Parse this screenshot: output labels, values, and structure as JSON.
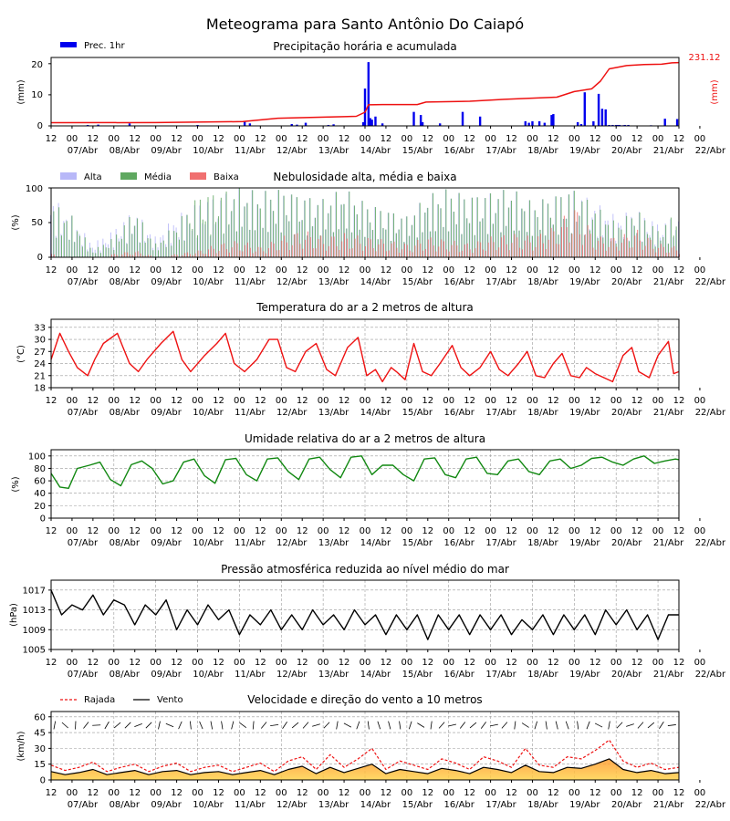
{
  "title": "Meteograma para Santo Antônio Do Caiapó",
  "time_axis": {
    "hours_total": 360,
    "hour_tick_labels": [
      "12",
      "00",
      "12",
      "00",
      "12",
      "00",
      "12",
      "00",
      "12",
      "00",
      "12",
      "00",
      "12",
      "00",
      "12",
      "00",
      "12",
      "00",
      "12",
      "00",
      "12",
      "00",
      "12",
      "00",
      "12",
      "00",
      "12",
      "00",
      "12",
      "00",
      "12",
      "00"
    ],
    "day_labels": [
      "07/Abr",
      "08/Abr",
      "09/Abr",
      "10/Abr",
      "11/Abr",
      "12/Abr",
      "13/Abr",
      "14/Abr",
      "15/Abr",
      "16/Abr",
      "17/Abr",
      "18/Abr",
      "19/Abr",
      "20/Abr",
      "21/Abr",
      "22/Abr"
    ]
  },
  "panels": {
    "precip": {
      "title": "Precipitação horária e acumulada",
      "ylabel": "(mm)",
      "ylabel_right": "(mm)",
      "right_value": "231.12",
      "legend": "Prec. 1hr",
      "yticks": [
        "0",
        "10",
        "20"
      ]
    },
    "clouds": {
      "title": "Nebulosidade alta, média e baixa",
      "ylabel": "(%)",
      "legend": [
        "Alta",
        "Média",
        "Baixa"
      ],
      "yticks": [
        "0",
        "50",
        "100"
      ]
    },
    "temp": {
      "title": "Temperatura do ar a 2 metros de altura",
      "ylabel": "(°C)",
      "yticks": [
        "18",
        "21",
        "24",
        "27",
        "30",
        "33"
      ]
    },
    "rh": {
      "title": "Umidade relativa do ar a 2 metros de altura",
      "ylabel": "(%)",
      "yticks": [
        "0",
        "20",
        "40",
        "60",
        "80",
        "100"
      ]
    },
    "press": {
      "title": "Pressão atmosférica reduzida ao nível médio do mar",
      "ylabel": "(hPa)",
      "yticks": [
        "1005",
        "1009",
        "1013",
        "1017"
      ]
    },
    "wind": {
      "title": "Velocidade e direção do vento a 10 metros",
      "ylabel": "(km/h)",
      "legend": [
        "Rajada",
        "Vento"
      ],
      "yticks": [
        "0",
        "15",
        "30",
        "45",
        "60"
      ]
    }
  },
  "colors": {
    "precip_bar": "#0000ee",
    "precip_accum": "#ee1111",
    "cloud_high": "#b8b8f8",
    "cloud_mid": "#5fa860",
    "cloud_low": "#f07070",
    "temp": "#ee1111",
    "rh": "#118811",
    "press": "#000000",
    "gust": "#ee1111",
    "wind": "#000000"
  },
  "chart_data": [
    {
      "type": "bar",
      "name": "precip_hourly",
      "title": "Precipitação horária e acumulada",
      "ylabel": "(mm)",
      "ylim": [
        0,
        22
      ],
      "x_unit": "hours since 07/Abr 12h",
      "x": [
        21,
        27,
        45,
        84,
        111,
        114,
        138,
        141,
        146,
        159,
        162,
        179,
        180,
        182,
        183,
        184,
        186,
        190,
        208,
        212,
        213,
        223,
        236,
        246,
        272,
        274,
        276,
        280,
        283,
        287,
        288,
        302,
        304,
        306,
        311,
        314,
        316,
        318,
        320,
        322,
        324,
        325,
        326,
        328,
        329,
        331,
        344,
        352,
        359
      ],
      "values": [
        0.3,
        0.4,
        0.8,
        0.3,
        1.5,
        0.8,
        0.6,
        0.4,
        1.0,
        0.3,
        0.5,
        1.2,
        12,
        20.5,
        2.5,
        2,
        3,
        0.8,
        4.5,
        3.5,
        1.2,
        0.8,
        4.5,
        3,
        1.5,
        1,
        1.5,
        1.5,
        1,
        3.5,
        3.8,
        1.2,
        0.6,
        10.8,
        1.5,
        10.3,
        5.5,
        5.3,
        0.3,
        0.3,
        0.3,
        0.3,
        0.3,
        0.2,
        0.3,
        0.3,
        0.2,
        2.3,
        2.2
      ]
    },
    {
      "type": "line",
      "name": "precip_accumulated",
      "ylim": [
        0,
        231.12
      ],
      "x": [
        0,
        60,
        110,
        130,
        175,
        180,
        182,
        190,
        210,
        215,
        240,
        260,
        290,
        300,
        310,
        315,
        320,
        330,
        340,
        350,
        356,
        360
      ],
      "values": [
        11.5,
        12,
        15.5,
        28,
        35,
        50,
        77,
        78,
        78,
        87,
        90,
        97,
        105,
        125,
        135,
        163,
        208,
        220,
        224,
        225,
        230,
        231.12
      ]
    },
    {
      "type": "line",
      "name": "temperature",
      "title": "Temperatura do ar a 2 metros de altura",
      "ylabel": "(°C)",
      "ylim": [
        18,
        35
      ],
      "x": [
        0,
        5,
        10,
        15,
        21,
        25,
        30,
        38,
        45,
        50,
        55,
        63,
        70,
        75,
        80,
        88,
        95,
        100,
        105,
        111,
        118,
        125,
        130,
        135,
        140,
        146,
        152,
        158,
        163,
        170,
        176,
        181,
        186,
        190,
        195,
        198,
        203,
        208,
        213,
        218,
        223,
        230,
        235,
        240,
        246,
        252,
        257,
        262,
        268,
        273,
        278,
        283,
        288,
        293,
        298,
        303,
        307,
        312,
        317,
        322,
        328,
        333,
        337,
        343,
        348,
        354,
        357,
        360
      ],
      "values": [
        25,
        31.5,
        27,
        23,
        21,
        25,
        29,
        31.5,
        24,
        22,
        25,
        29,
        32,
        25,
        22,
        26,
        29,
        31.5,
        24,
        22,
        25,
        30,
        30,
        23,
        22,
        27,
        29,
        22.5,
        21,
        28,
        30.5,
        21,
        22.5,
        19.5,
        23,
        22,
        20,
        29,
        22,
        21,
        24,
        28.5,
        23,
        21,
        23,
        27,
        22.5,
        21,
        24,
        27,
        21,
        20.5,
        24,
        26.5,
        21,
        20.5,
        23,
        21.5,
        20.5,
        19.5,
        26,
        28,
        22,
        20.5,
        26,
        29.5,
        21.5,
        22
      ]
    },
    {
      "type": "line",
      "name": "relative_humidity",
      "title": "Umidade relativa do ar a 2 metros de altura",
      "ylabel": "(%)",
      "ylim": [
        0,
        110
      ],
      "x": [
        0,
        5,
        10,
        15,
        22,
        28,
        34,
        40,
        46,
        52,
        58,
        64,
        70,
        76,
        82,
        88,
        94,
        100,
        106,
        112,
        118,
        124,
        130,
        136,
        142,
        148,
        154,
        160,
        166,
        172,
        178,
        184,
        190,
        196,
        202,
        208,
        214,
        220,
        226,
        232,
        238,
        244,
        250,
        256,
        262,
        268,
        274,
        280,
        286,
        292,
        298,
        304,
        310,
        316,
        322,
        328,
        334,
        340,
        346,
        352,
        358,
        360
      ],
      "values": [
        72,
        50,
        48,
        80,
        85,
        90,
        62,
        52,
        86,
        92,
        80,
        55,
        60,
        90,
        95,
        68,
        56,
        94,
        96,
        70,
        60,
        95,
        97,
        75,
        62,
        95,
        98,
        78,
        65,
        98,
        100,
        70,
        85,
        85,
        70,
        60,
        95,
        97,
        70,
        65,
        95,
        98,
        72,
        70,
        92,
        95,
        75,
        70,
        92,
        95,
        80,
        85,
        96,
        98,
        90,
        85,
        95,
        100,
        88,
        92,
        95,
        94
      ]
    },
    {
      "type": "line",
      "name": "pressure",
      "title": "Pressão atmosférica reduzida ao nível médio do mar",
      "ylabel": "(hPa)",
      "ylim": [
        1005,
        1019
      ],
      "x": [
        0,
        6,
        12,
        18,
        24,
        30,
        36,
        42,
        48,
        54,
        60,
        66,
        72,
        78,
        84,
        90,
        96,
        102,
        108,
        114,
        120,
        126,
        132,
        138,
        144,
        150,
        156,
        162,
        168,
        174,
        180,
        186,
        192,
        198,
        204,
        210,
        216,
        222,
        228,
        234,
        240,
        246,
        252,
        258,
        264,
        270,
        276,
        282,
        288,
        294,
        300,
        306,
        312,
        318,
        324,
        330,
        336,
        342,
        348,
        354,
        360
      ],
      "values": [
        1017,
        1012,
        1014,
        1013,
        1016,
        1012,
        1015,
        1014,
        1010,
        1014,
        1012,
        1015,
        1009,
        1013,
        1010,
        1014,
        1011,
        1013,
        1008,
        1012,
        1010,
        1013,
        1009,
        1012,
        1009,
        1013,
        1010,
        1012,
        1009,
        1013,
        1010,
        1012,
        1008,
        1012,
        1009,
        1012,
        1007,
        1012,
        1009,
        1012,
        1008,
        1012,
        1009,
        1012,
        1008,
        1011,
        1009,
        1012,
        1008,
        1012,
        1009,
        1012,
        1008,
        1013,
        1010,
        1013,
        1009,
        1012,
        1007,
        1012,
        1012
      ]
    },
    {
      "type": "line",
      "name": "wind",
      "title": "Velocidade e direção do vento a 10 metros",
      "ylabel": "(km/h)",
      "ylim": [
        0,
        65
      ],
      "x": [
        0,
        8,
        16,
        24,
        32,
        40,
        48,
        56,
        64,
        72,
        80,
        88,
        96,
        104,
        112,
        120,
        128,
        136,
        144,
        152,
        160,
        168,
        176,
        184,
        192,
        200,
        208,
        216,
        224,
        232,
        240,
        248,
        256,
        264,
        272,
        280,
        288,
        296,
        304,
        312,
        320,
        328,
        336,
        344,
        352,
        360
      ],
      "series": [
        {
          "name": "Rajada",
          "values": [
            14,
            9,
            12,
            17,
            8,
            12,
            15,
            8,
            13,
            16,
            8,
            12,
            14,
            8,
            12,
            16,
            8,
            18,
            22,
            10,
            24,
            12,
            20,
            30,
            10,
            18,
            14,
            10,
            20,
            16,
            10,
            22,
            18,
            12,
            30,
            14,
            12,
            22,
            20,
            28,
            38,
            18,
            12,
            16,
            10,
            12
          ]
        },
        {
          "name": "Vento",
          "values": [
            8,
            5,
            7,
            10,
            5,
            7,
            9,
            5,
            8,
            9,
            5,
            7,
            8,
            5,
            7,
            9,
            5,
            10,
            13,
            6,
            12,
            7,
            11,
            15,
            6,
            10,
            8,
            6,
            11,
            9,
            6,
            12,
            10,
            7,
            14,
            8,
            7,
            12,
            11,
            15,
            20,
            10,
            7,
            9,
            6,
            7
          ]
        }
      ]
    },
    {
      "type": "area",
      "name": "cloud_cover",
      "title": "Nebulosidade alta, média e baixa",
      "ylabel": "(%)",
      "ylim": [
        0,
        100
      ],
      "x": [
        0,
        12,
        24,
        36,
        48,
        60,
        72,
        84,
        96,
        108,
        120,
        132,
        144,
        156,
        168,
        180,
        192,
        204,
        216,
        228,
        240,
        252,
        264,
        276,
        288,
        300,
        312,
        324,
        336,
        348,
        360
      ],
      "series": [
        {
          "name": "Alta",
          "values": [
            90,
            60,
            20,
            40,
            70,
            30,
            60,
            80,
            90,
            100,
            95,
            100,
            90,
            85,
            100,
            80,
            70,
            60,
            90,
            100,
            90,
            95,
            100,
            80,
            90,
            100,
            80,
            60,
            70,
            50,
            60
          ]
        },
        {
          "name": "Média",
          "values": [
            80,
            60,
            10,
            30,
            70,
            20,
            50,
            90,
            95,
            100,
            95,
            100,
            90,
            85,
            100,
            80,
            70,
            60,
            90,
            100,
            90,
            95,
            100,
            80,
            90,
            100,
            75,
            50,
            70,
            40,
            70
          ]
        },
        {
          "name": "Baixa",
          "values": [
            5,
            0,
            0,
            5,
            10,
            0,
            5,
            10,
            20,
            25,
            15,
            30,
            40,
            30,
            35,
            30,
            25,
            20,
            30,
            25,
            20,
            30,
            35,
            30,
            45,
            75,
            30,
            30,
            40,
            20,
            15
          ]
        }
      ]
    }
  ]
}
